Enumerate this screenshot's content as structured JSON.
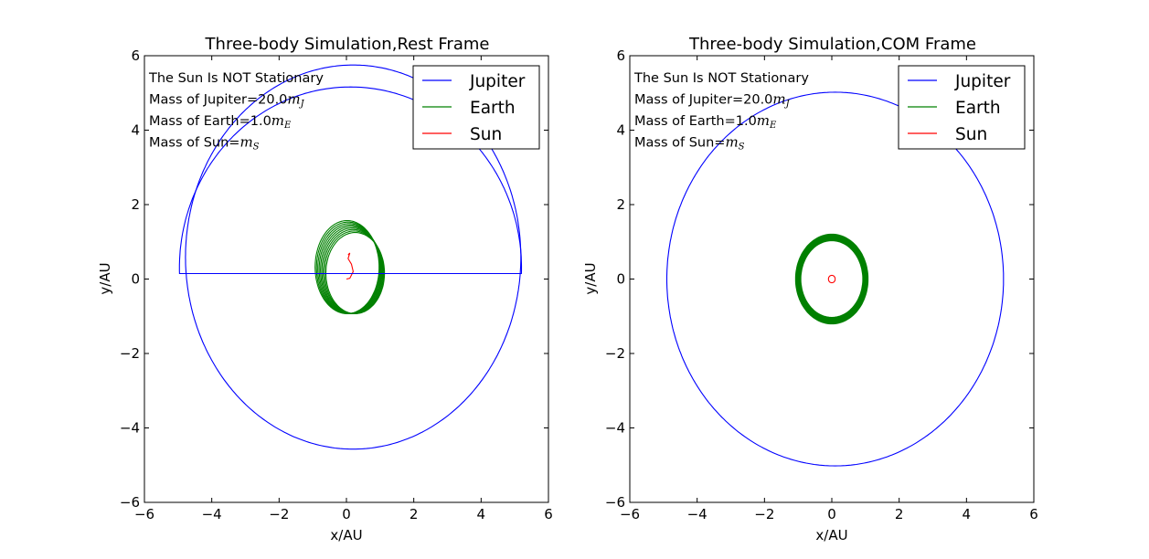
{
  "chart_data": [
    {
      "type": "line",
      "title": "Three-body Simulation,Rest Frame",
      "xlabel": "x/AU",
      "ylabel": "y/AU",
      "xlim": [
        -6,
        6
      ],
      "ylim": [
        -6,
        6
      ],
      "xticks": [
        -6,
        -4,
        -2,
        0,
        2,
        4,
        6
      ],
      "yticks": [
        -6,
        -4,
        -2,
        0,
        2,
        4,
        6
      ],
      "tick_labels": [
        "−6",
        "−4",
        "−2",
        "0",
        "2",
        "4",
        "6"
      ],
      "legend_position": "top-right",
      "annotations": [
        {
          "prefix": "The Sun Is NOT Stationary",
          "math": "",
          "sub": ""
        },
        {
          "prefix": "Mass of Jupiter=20.0",
          "math": "m",
          "sub": "J"
        },
        {
          "prefix": "Mass of Earth=1.0",
          "math": "m",
          "sub": "E"
        },
        {
          "prefix": "Mass of Sun=",
          "math": "m",
          "sub": "S"
        }
      ],
      "series": [
        {
          "name": "Jupiter",
          "color": "#0000ff",
          "orbit": "jupiter_rest"
        },
        {
          "name": "Earth",
          "color": "#008000",
          "orbit": "earth_rest"
        },
        {
          "name": "Sun",
          "color": "#ff0000",
          "orbit": "sun_rest"
        }
      ]
    },
    {
      "type": "line",
      "title": "Three-body Simulation,COM Frame",
      "xlabel": "x/AU",
      "ylabel": "y/AU",
      "xlim": [
        -6,
        6
      ],
      "ylim": [
        -6,
        6
      ],
      "xticks": [
        -6,
        -4,
        -2,
        0,
        2,
        4,
        6
      ],
      "yticks": [
        -6,
        -4,
        -2,
        0,
        2,
        4,
        6
      ],
      "tick_labels": [
        "−6",
        "−4",
        "−2",
        "0",
        "2",
        "4",
        "6"
      ],
      "legend_position": "top-right",
      "annotations": [
        {
          "prefix": "The Sun Is NOT Stationary",
          "math": "",
          "sub": ""
        },
        {
          "prefix": "Mass of Jupiter=20.0",
          "math": "m",
          "sub": "J"
        },
        {
          "prefix": "Mass of Earth=1.0",
          "math": "m",
          "sub": "E"
        },
        {
          "prefix": "Mass of Sun=",
          "math": "m",
          "sub": "S"
        }
      ],
      "series": [
        {
          "name": "Jupiter",
          "color": "#0000ff",
          "orbit": "jupiter_com"
        },
        {
          "name": "Earth",
          "color": "#008000",
          "orbit": "earth_com"
        },
        {
          "name": "Sun",
          "color": "#ff0000",
          "orbit": "sun_com"
        }
      ]
    }
  ]
}
